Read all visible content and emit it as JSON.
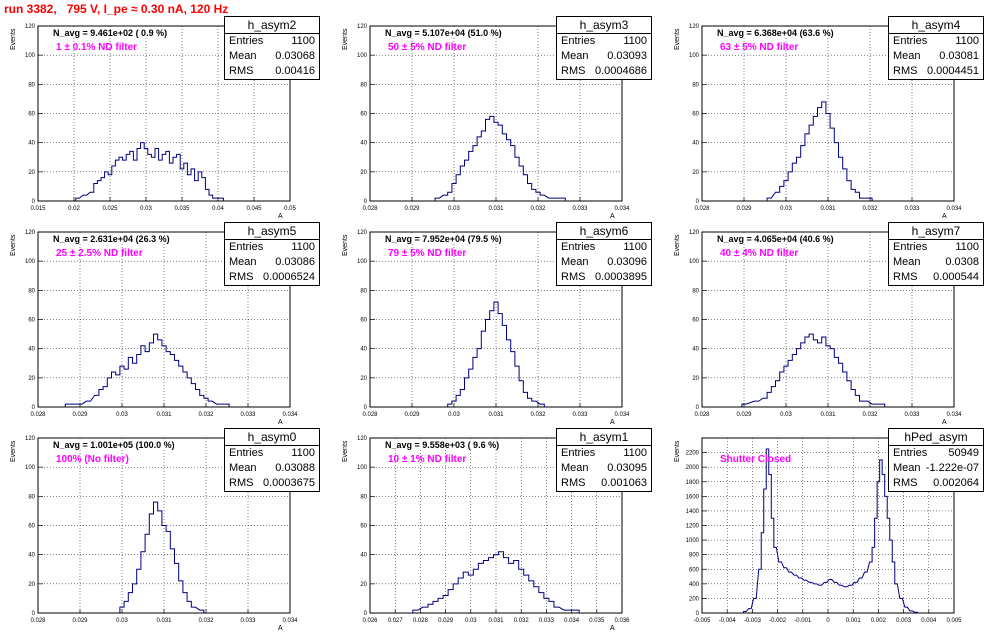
{
  "run_title": "run 3382,   795 V, I_pe ≈ 0.30 nA, 120 Hz",
  "colors": {
    "title": "#ff0000",
    "filter_text": "#ff00ff",
    "hist_line": "#000080",
    "frame": "#000000"
  },
  "stat_labels": {
    "entries": "Entries",
    "mean": "Mean",
    "rms": "RMS"
  },
  "chart_data": [
    {
      "type": "bar",
      "name": "h_asym2",
      "n_avg": "N_avg = 9.461e+02 ( 0.9 %)",
      "filter": "1 ± 0.1% ND filter",
      "entries": "1100",
      "mean": "0.03068",
      "rms": "0.00416",
      "ylabel": "Events",
      "xlabel": "A",
      "xlim": [
        0.015,
        0.05
      ],
      "ylim": [
        0,
        120
      ],
      "xticks": [
        "0.015",
        "0.02",
        "0.025",
        "0.03",
        "0.035",
        "0.04",
        "0.045",
        "0.05"
      ],
      "yticks": [
        "0",
        "20",
        "40",
        "60",
        "80",
        "100",
        "120"
      ],
      "x": [
        0.0205,
        0.0215,
        0.0225,
        0.023,
        0.0235,
        0.024,
        0.0245,
        0.025,
        0.0255,
        0.026,
        0.0265,
        0.027,
        0.0275,
        0.028,
        0.0285,
        0.029,
        0.0295,
        0.03,
        0.0305,
        0.031,
        0.0315,
        0.032,
        0.0325,
        0.033,
        0.0335,
        0.034,
        0.0345,
        0.035,
        0.0355,
        0.036,
        0.0365,
        0.037,
        0.0375,
        0.038,
        0.0385,
        0.039,
        0.0395,
        0.0405
      ],
      "values": [
        2,
        4,
        6,
        12,
        14,
        16,
        20,
        18,
        24,
        28,
        30,
        28,
        32,
        34,
        28,
        36,
        40,
        36,
        32,
        30,
        36,
        28,
        32,
        34,
        26,
        30,
        32,
        22,
        26,
        18,
        22,
        14,
        20,
        16,
        8,
        4,
        2,
        2
      ]
    },
    {
      "type": "bar",
      "name": "h_asym3",
      "n_avg": "N_avg = 5.107e+04 (51.0 %)",
      "filter": "50 ± 5% ND filter",
      "entries": "1100",
      "mean": "0.03093",
      "rms": "0.0004686",
      "ylabel": "Events",
      "xlabel": "A",
      "xlim": [
        0.028,
        0.034
      ],
      "ylim": [
        0,
        120
      ],
      "xticks": [
        "0.028",
        "0.029",
        "0.03",
        "0.031",
        "0.032",
        "0.033",
        "0.034"
      ],
      "yticks": [
        "0",
        "20",
        "40",
        "60",
        "80",
        "100",
        "120"
      ],
      "x": [
        0.0296,
        0.0298,
        0.0299,
        0.03,
        0.0301,
        0.0302,
        0.0303,
        0.0304,
        0.0305,
        0.0306,
        0.0307,
        0.0308,
        0.0309,
        0.031,
        0.0311,
        0.0312,
        0.0313,
        0.0314,
        0.0315,
        0.0316,
        0.0317,
        0.0318,
        0.0319,
        0.032,
        0.0321,
        0.0323,
        0.0326
      ],
      "values": [
        2,
        4,
        6,
        12,
        18,
        24,
        28,
        34,
        38,
        44,
        48,
        56,
        58,
        54,
        52,
        46,
        42,
        38,
        30,
        24,
        18,
        12,
        8,
        6,
        4,
        2,
        2
      ]
    },
    {
      "type": "bar",
      "name": "h_asym4",
      "n_avg": "N_avg = 6.368e+04 (63.6 %)",
      "filter": "63 ± 5% ND filter",
      "entries": "1100",
      "mean": "0.03081",
      "rms": "0.0004451",
      "ylabel": "Events",
      "xlabel": "A",
      "xlim": [
        0.028,
        0.034
      ],
      "ylim": [
        0,
        120
      ],
      "xticks": [
        "0.028",
        "0.029",
        "0.03",
        "0.031",
        "0.032",
        "0.033",
        "0.034"
      ],
      "yticks": [
        "0",
        "20",
        "40",
        "60",
        "80",
        "100",
        "120"
      ],
      "x": [
        0.0296,
        0.0298,
        0.0299,
        0.03,
        0.0301,
        0.0302,
        0.0303,
        0.0304,
        0.0305,
        0.0306,
        0.0307,
        0.0308,
        0.0309,
        0.031,
        0.0311,
        0.0312,
        0.0313,
        0.0314,
        0.0315,
        0.0316,
        0.0317,
        0.0318,
        0.032
      ],
      "values": [
        2,
        6,
        10,
        14,
        20,
        26,
        30,
        38,
        46,
        52,
        58,
        64,
        68,
        60,
        50,
        40,
        30,
        22,
        14,
        8,
        6,
        2,
        2
      ]
    },
    {
      "type": "bar",
      "name": "h_asym5",
      "n_avg": "N_avg = 2.631e+04 (26.3 %)",
      "filter": "25 ± 2.5% ND filter",
      "entries": "1100",
      "mean": "0.03086",
      "rms": "0.0006524",
      "ylabel": "Events",
      "xlabel": "A",
      "xlim": [
        0.028,
        0.034
      ],
      "ylim": [
        0,
        120
      ],
      "xticks": [
        "0.028",
        "0.029",
        "0.03",
        "0.031",
        "0.032",
        "0.033",
        "0.034"
      ],
      "yticks": [
        "0",
        "20",
        "40",
        "60",
        "80",
        "100",
        "120"
      ],
      "x": [
        0.0287,
        0.029,
        0.0292,
        0.0294,
        0.0295,
        0.0296,
        0.0297,
        0.0298,
        0.0299,
        0.03,
        0.0301,
        0.0302,
        0.0303,
        0.0304,
        0.0305,
        0.0306,
        0.0307,
        0.0308,
        0.0309,
        0.031,
        0.0311,
        0.0312,
        0.0313,
        0.0314,
        0.0315,
        0.0316,
        0.0317,
        0.0318,
        0.0319,
        0.032,
        0.0321,
        0.0323,
        0.0325
      ],
      "values": [
        2,
        2,
        4,
        8,
        12,
        14,
        20,
        24,
        22,
        28,
        26,
        34,
        30,
        36,
        42,
        38,
        44,
        50,
        46,
        42,
        38,
        36,
        32,
        28,
        24,
        20,
        16,
        12,
        8,
        6,
        4,
        2,
        2
      ]
    },
    {
      "type": "bar",
      "name": "h_asym6",
      "n_avg": "N_avg = 7.952e+04 (79.5 %)",
      "filter": "79 ± 5% ND filter",
      "entries": "1100",
      "mean": "0.03096",
      "rms": "0.0003895",
      "ylabel": "Events",
      "xlabel": "A",
      "xlim": [
        0.028,
        0.034
      ],
      "ylim": [
        0,
        120
      ],
      "xticks": [
        "0.028",
        "0.029",
        "0.03",
        "0.031",
        "0.032",
        "0.033",
        "0.034"
      ],
      "yticks": [
        "0",
        "20",
        "40",
        "60",
        "80",
        "100",
        "120"
      ],
      "x": [
        0.0299,
        0.03,
        0.0301,
        0.0302,
        0.0303,
        0.0304,
        0.0305,
        0.0306,
        0.0307,
        0.0308,
        0.0309,
        0.031,
        0.0311,
        0.0312,
        0.0313,
        0.0314,
        0.0315,
        0.0316,
        0.0317,
        0.0318,
        0.0319,
        0.0321
      ],
      "values": [
        2,
        4,
        8,
        12,
        20,
        26,
        34,
        40,
        52,
        60,
        66,
        72,
        64,
        56,
        46,
        38,
        28,
        18,
        10,
        6,
        4,
        2
      ]
    },
    {
      "type": "bar",
      "name": "h_asym7",
      "n_avg": "N_avg = 4.065e+04 (40.6 %)",
      "filter": "40 ± 4% ND filter",
      "entries": "1100",
      "mean": "0.0308",
      "rms": "0.000544",
      "ylabel": "Events",
      "xlabel": "A",
      "xlim": [
        0.028,
        0.034
      ],
      "ylim": [
        0,
        120
      ],
      "xticks": [
        "0.028",
        "0.029",
        "0.03",
        "0.031",
        "0.032",
        "0.033",
        "0.034"
      ],
      "yticks": [
        "0",
        "20",
        "40",
        "60",
        "80",
        "100",
        "120"
      ],
      "x": [
        0.029,
        0.0293,
        0.0295,
        0.0296,
        0.0297,
        0.0298,
        0.0299,
        0.03,
        0.0301,
        0.0302,
        0.0303,
        0.0304,
        0.0305,
        0.0306,
        0.0307,
        0.0308,
        0.0309,
        0.031,
        0.0311,
        0.0312,
        0.0313,
        0.0314,
        0.0315,
        0.0316,
        0.0317,
        0.0318,
        0.0319,
        0.0321,
        0.0323
      ],
      "values": [
        2,
        4,
        6,
        10,
        14,
        18,
        24,
        28,
        32,
        36,
        40,
        44,
        48,
        50,
        46,
        44,
        48,
        42,
        40,
        34,
        30,
        24,
        18,
        12,
        8,
        4,
        4,
        2,
        2
      ]
    },
    {
      "type": "bar",
      "name": "h_asym0",
      "n_avg": "N_avg = 1.001e+05 (100.0 %)",
      "filter": "100% (No filter)",
      "entries": "1100",
      "mean": "0.03088",
      "rms": "0.0003675",
      "ylabel": "Events",
      "xlabel": "A",
      "xlim": [
        0.028,
        0.034
      ],
      "ylim": [
        0,
        120
      ],
      "xticks": [
        "0.028",
        "0.029",
        "0.03",
        "0.031",
        "0.032",
        "0.033",
        "0.034"
      ],
      "yticks": [
        "0",
        "20",
        "40",
        "60",
        "80",
        "100",
        "120"
      ],
      "x": [
        0.03,
        0.0301,
        0.0302,
        0.0303,
        0.0304,
        0.0305,
        0.0306,
        0.0307,
        0.0308,
        0.0309,
        0.031,
        0.0311,
        0.0312,
        0.0313,
        0.0314,
        0.0315,
        0.0316,
        0.0317,
        0.0319
      ],
      "values": [
        4,
        8,
        14,
        20,
        30,
        42,
        54,
        68,
        76,
        70,
        60,
        56,
        44,
        34,
        22,
        14,
        8,
        4,
        2
      ]
    },
    {
      "type": "bar",
      "name": "h_asym1",
      "n_avg": "N_avg = 9.558e+03 ( 9.6 %)",
      "filter": "10 ± 1% ND filter",
      "entries": "1100",
      "mean": "0.03095",
      "rms": "0.001063",
      "ylabel": "Events",
      "xlabel": "A",
      "xlim": [
        0.026,
        0.036
      ],
      "ylim": [
        0,
        120
      ],
      "xticks": [
        "0.026",
        "0.027",
        "0.028",
        "0.029",
        "0.03",
        "0.031",
        "0.032",
        "0.033",
        "0.034",
        "0.035",
        "0.036"
      ],
      "yticks": [
        "0",
        "20",
        "40",
        "60",
        "80",
        "100",
        "120"
      ],
      "x": [
        0.0278,
        0.0282,
        0.0284,
        0.0286,
        0.0288,
        0.029,
        0.0292,
        0.0294,
        0.0296,
        0.0298,
        0.03,
        0.0302,
        0.0304,
        0.0306,
        0.0308,
        0.031,
        0.0312,
        0.0314,
        0.0316,
        0.0318,
        0.032,
        0.0322,
        0.0324,
        0.0326,
        0.0328,
        0.033,
        0.0332,
        0.0334,
        0.0338,
        0.0342
      ],
      "values": [
        2,
        4,
        6,
        8,
        10,
        12,
        16,
        20,
        24,
        28,
        26,
        30,
        34,
        36,
        38,
        40,
        42,
        38,
        34,
        36,
        30,
        26,
        22,
        18,
        14,
        10,
        8,
        4,
        2,
        2
      ]
    },
    {
      "type": "bar",
      "name": "hPed_asym",
      "n_avg": "",
      "filter": "Shutter Closed",
      "entries": "50949",
      "mean": "-1.222e-07",
      "rms": "0.002064",
      "ylabel": "Events",
      "xlabel": "",
      "xlim": [
        -0.005,
        0.005
      ],
      "ylim": [
        0,
        2400
      ],
      "xticks": [
        "-0.005",
        "-0.004",
        "-0.003",
        "-0.002",
        "-0.001",
        "0",
        "0.001",
        "0.002",
        "0.003",
        "0.004",
        "0.005"
      ],
      "yticks": [
        "0",
        "200",
        "400",
        "600",
        "800",
        "1000",
        "1200",
        "1400",
        "1600",
        "1800",
        "2000",
        "2200"
      ],
      "x": [
        -0.0033,
        -0.0031,
        -0.0029,
        -0.0027,
        -0.0026,
        -0.0025,
        -0.0024,
        -0.0023,
        -0.0022,
        -0.0021,
        -0.0019,
        -0.0017,
        -0.0015,
        -0.0013,
        -0.0011,
        -0.0009,
        -0.0007,
        -0.0005,
        -0.0003,
        -0.0001,
        0.0001,
        0.0003,
        0.0005,
        0.0007,
        0.0009,
        0.0011,
        0.0013,
        0.0015,
        0.0017,
        0.0018,
        0.0019,
        0.002,
        0.0021,
        0.0022,
        0.0023,
        0.0024,
        0.0025,
        0.0026,
        0.0027,
        0.0029,
        0.0031,
        0.0033,
        0.0035
      ],
      "values": [
        20,
        60,
        200,
        600,
        1100,
        1700,
        2250,
        1900,
        1300,
        900,
        700,
        620,
        560,
        520,
        480,
        450,
        420,
        400,
        380,
        420,
        460,
        420,
        380,
        360,
        380,
        420,
        480,
        560,
        700,
        900,
        1300,
        1800,
        2100,
        1900,
        1600,
        1300,
        1000,
        700,
        400,
        200,
        80,
        30,
        10
      ]
    }
  ]
}
